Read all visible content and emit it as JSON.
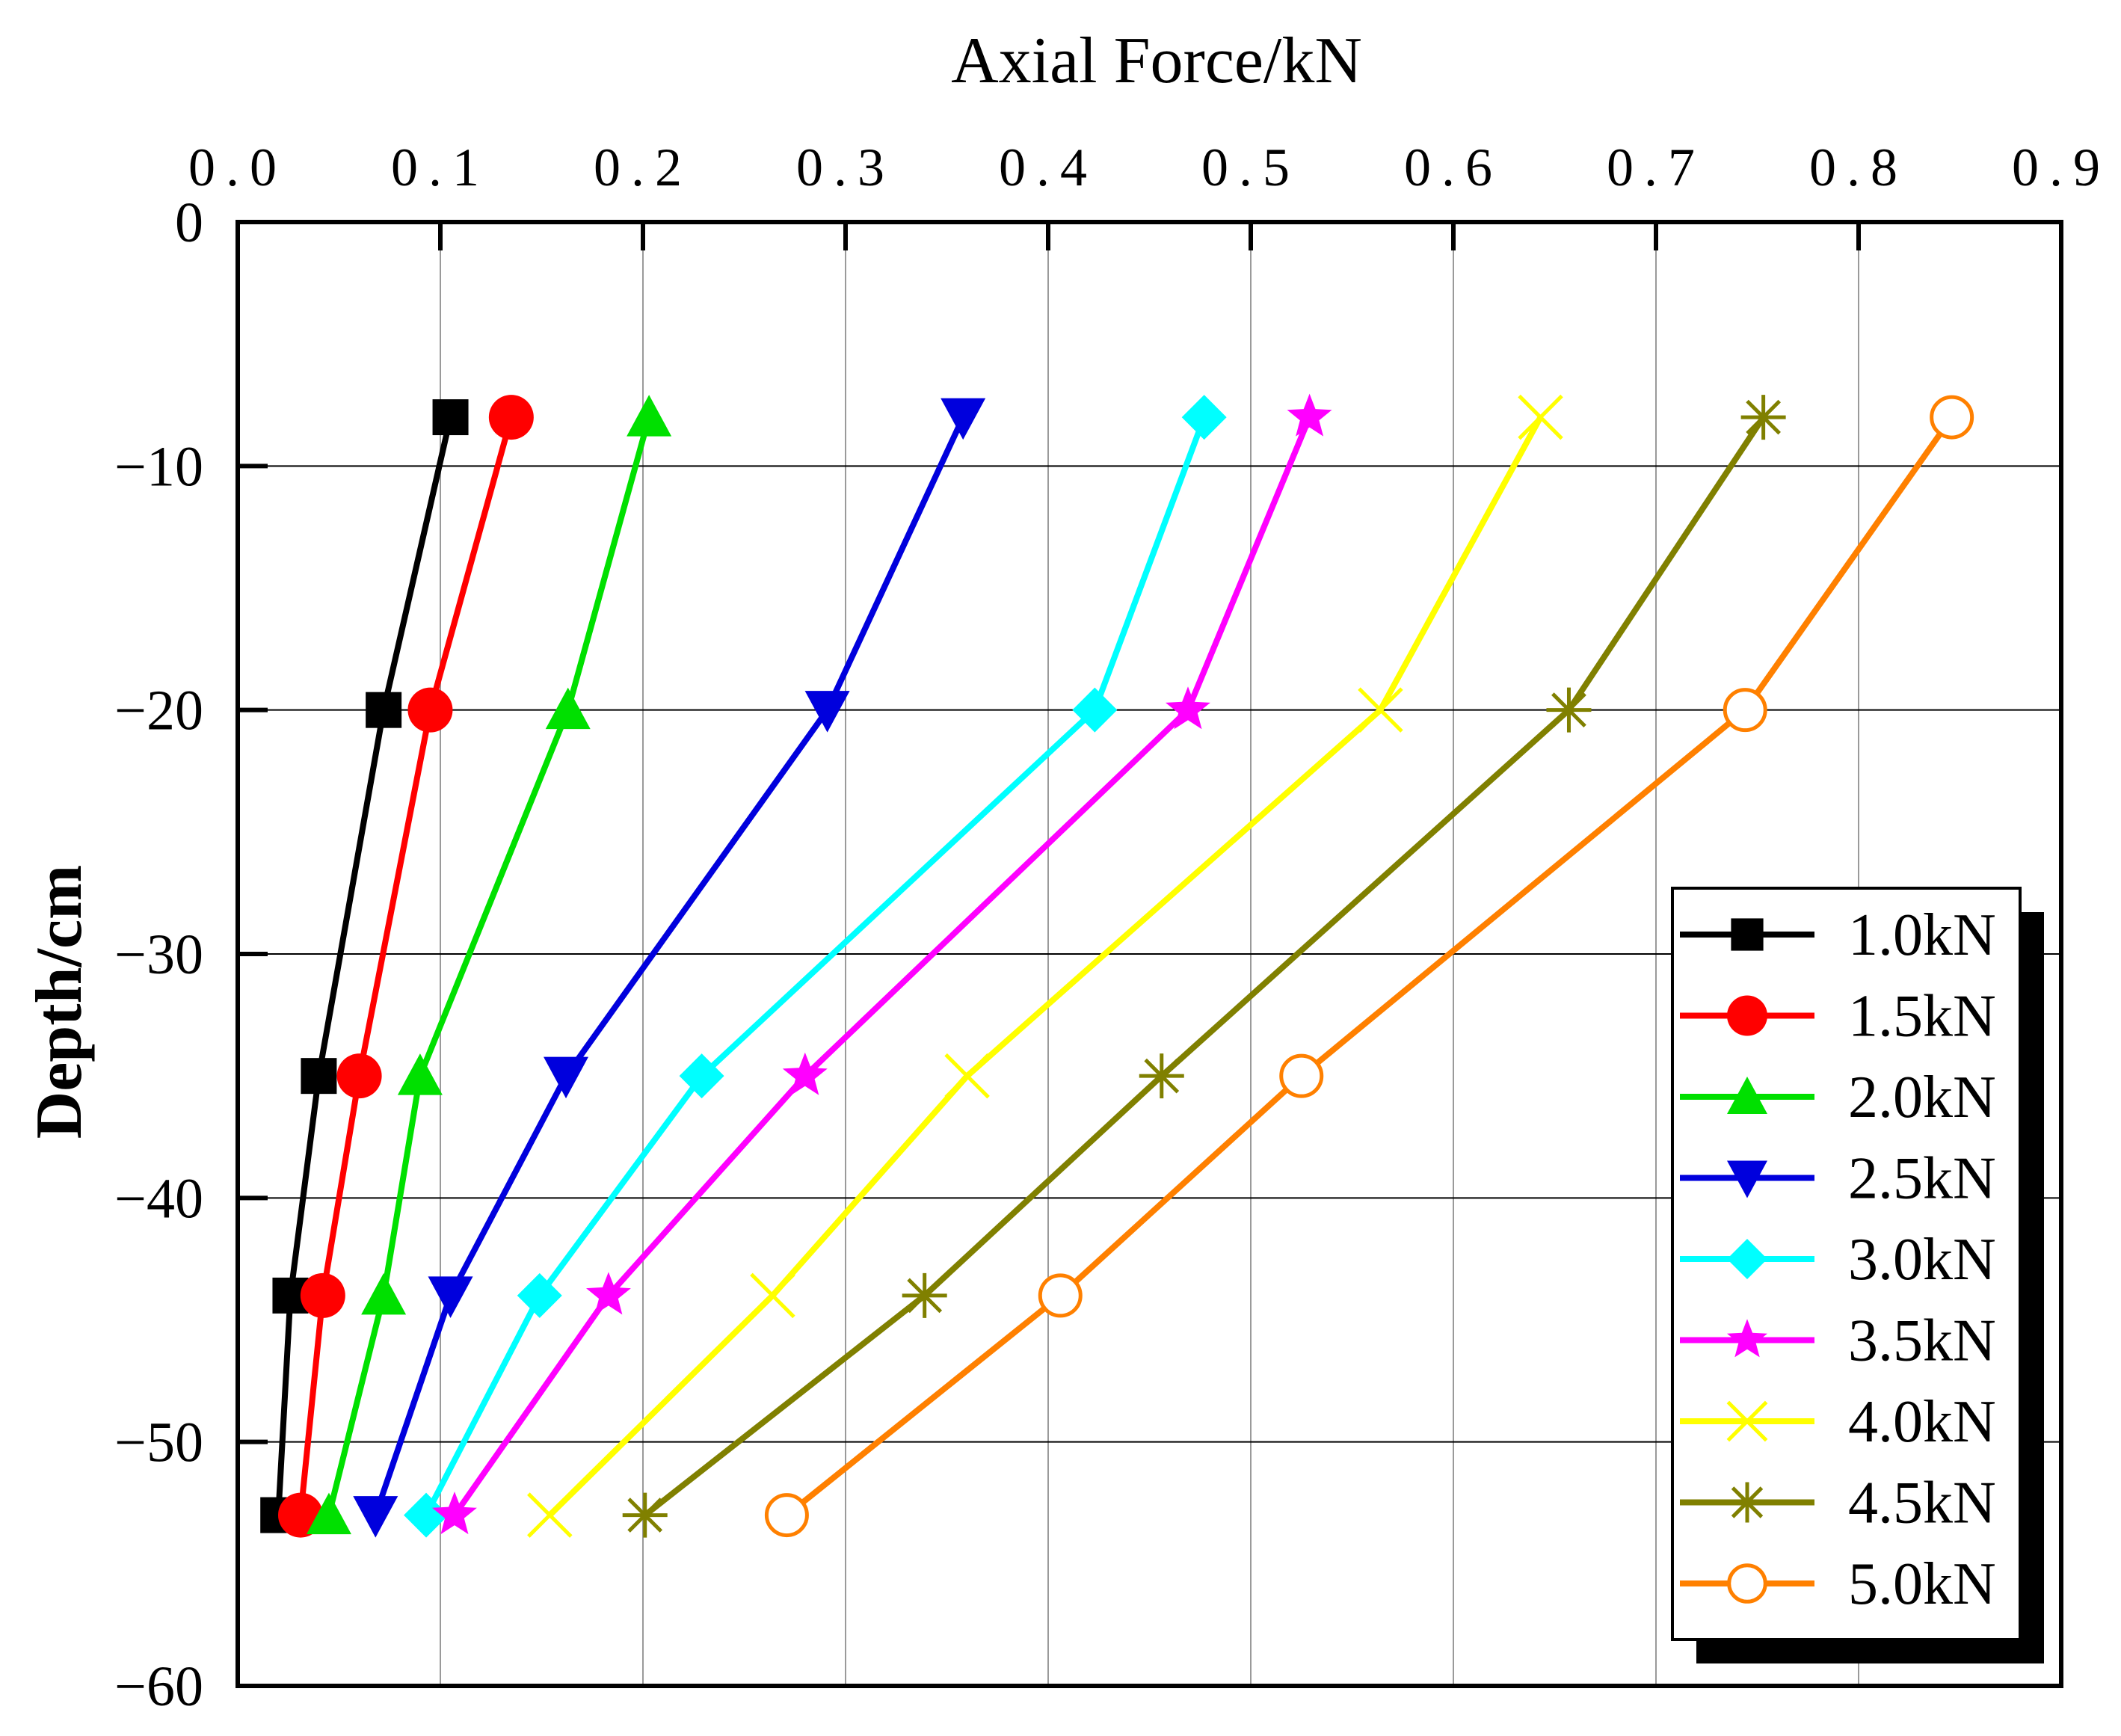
{
  "chart_data": {
    "type": "line",
    "title": "",
    "xlabel": "Axial Force/kN",
    "ylabel": "Depth/cm",
    "xaxis_position": "top",
    "xlim": [
      0.0,
      0.9
    ],
    "ylim": [
      -60,
      0
    ],
    "x_ticks": [
      0.0,
      0.1,
      0.2,
      0.3,
      0.4,
      0.5,
      0.6,
      0.7,
      0.8,
      0.9
    ],
    "x_tick_labels": [
      "0.0",
      "0.1",
      "0.2",
      "0.3",
      "0.4",
      "0.5",
      "0.6",
      "0.7",
      "0.8",
      "0.9"
    ],
    "y_ticks": [
      0,
      -10,
      -20,
      -30,
      -40,
      -50,
      -60
    ],
    "y_tick_labels": [
      "0",
      "−10",
      "−20",
      "−30",
      "−40",
      "−50",
      "−60"
    ],
    "grid": true,
    "legend_position": "bottom-right",
    "depths": [
      -8,
      -20,
      -35,
      -44,
      -53
    ],
    "series": [
      {
        "name": "1.0kN",
        "color": "#000000",
        "marker": "square",
        "x": [
          0.105,
          0.072,
          0.04,
          0.026,
          0.02
        ]
      },
      {
        "name": "1.5kN",
        "color": "#ff0000",
        "marker": "circle",
        "x": [
          0.135,
          0.095,
          0.06,
          0.042,
          0.031
        ]
      },
      {
        "name": "2.0kN",
        "color": "#00e000",
        "marker": "triangle-up",
        "x": [
          0.203,
          0.163,
          0.09,
          0.072,
          0.045
        ]
      },
      {
        "name": "2.5kN",
        "color": "#0000dd",
        "marker": "triangle-down",
        "x": [
          0.358,
          0.291,
          0.162,
          0.105,
          0.068
        ]
      },
      {
        "name": "3.0kN",
        "color": "#00ffff",
        "marker": "diamond",
        "x": [
          0.477,
          0.423,
          0.229,
          0.149,
          0.093
        ]
      },
      {
        "name": "3.5kN",
        "color": "#ff00ff",
        "marker": "star",
        "x": [
          0.529,
          0.469,
          0.28,
          0.183,
          0.107
        ]
      },
      {
        "name": "4.0kN",
        "color": "#ffff00",
        "marker": "x",
        "x": [
          0.643,
          0.564,
          0.36,
          0.264,
          0.154
        ]
      },
      {
        "name": "4.5kN",
        "color": "#808000",
        "marker": "asterisk",
        "x": [
          0.753,
          0.657,
          0.456,
          0.339,
          0.201
        ]
      },
      {
        "name": "5.0kN",
        "color": "#ff8000",
        "marker": "open-circle",
        "x": [
          0.846,
          0.744,
          0.525,
          0.406,
          0.271
        ]
      }
    ]
  }
}
